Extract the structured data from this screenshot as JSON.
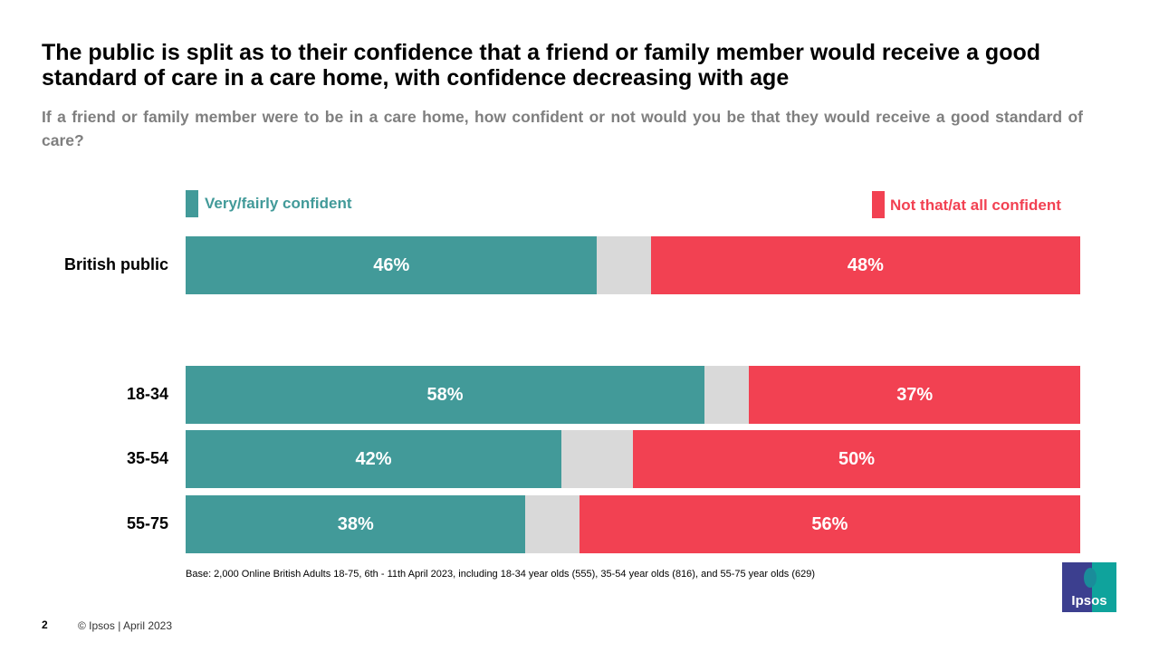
{
  "title": "The public is split as to their confidence that a friend or family member would receive a good standard of care in a care home, with confidence decreasing with age",
  "subtitle": "If a friend or family member were to be in a care home, how confident or not would you be that they would receive a good standard of care?",
  "chart_data": {
    "type": "bar",
    "orientation": "horizontal-stacked",
    "categories": [
      "British public",
      "18-34",
      "35-54",
      "55-75"
    ],
    "series": [
      {
        "name": "Very/fairly confident",
        "values": [
          46,
          58,
          42,
          38
        ],
        "labels": [
          "46%",
          "58%",
          "42%",
          "38%"
        ],
        "color": "#429a99"
      },
      {
        "values": [
          6,
          5,
          8,
          6
        ],
        "color": "#d9d9d9"
      },
      {
        "name": "Not that/at all confident",
        "values": [
          48,
          37,
          50,
          56
        ],
        "labels": [
          "48%",
          "37%",
          "50%",
          "56%"
        ],
        "color": "#f24152"
      }
    ],
    "xlim": [
      0,
      100
    ],
    "grid": false,
    "legend": "top"
  },
  "footer": {
    "base": "Base: 2,000 Online British Adults 18-75, 6th - 11th April 2023, including 18-34 year olds (555), 35-54 year olds (816), and 55-75 year olds (629)",
    "page": "2",
    "copyright": "© Ipsos | April 2023",
    "logo": "Ipsos"
  }
}
